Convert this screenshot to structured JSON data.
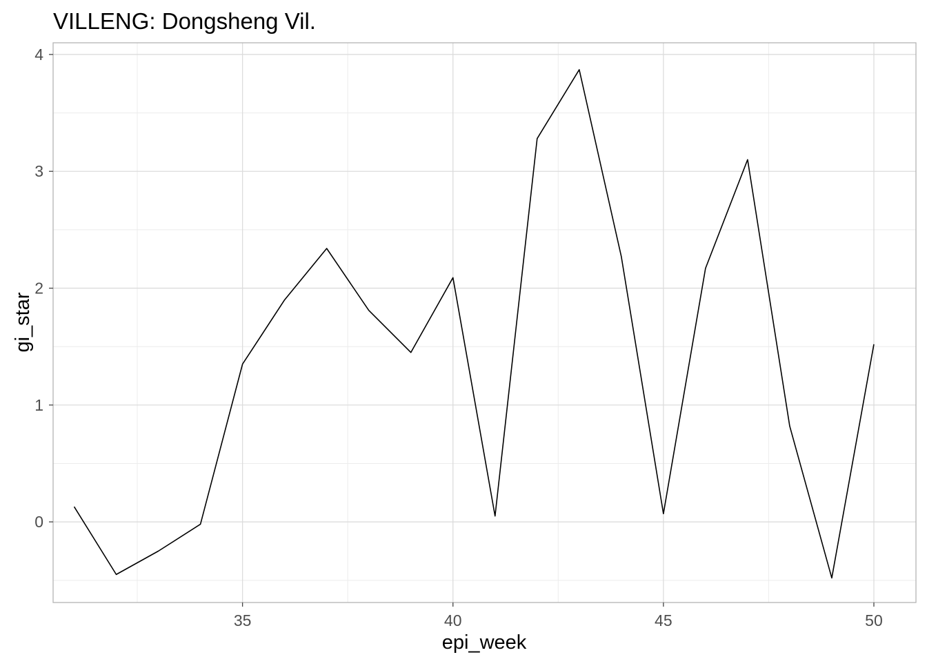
{
  "chart_data": {
    "type": "line",
    "title": "VILLENG: Dongsheng Vil.",
    "xlabel": "epi_week",
    "ylabel": "gi_star",
    "xlim": [
      30.5,
      51.0
    ],
    "ylim": [
      -0.69,
      4.1
    ],
    "x_ticks": [
      35,
      40,
      45,
      50
    ],
    "y_ticks": [
      0,
      1,
      2,
      3,
      4
    ],
    "x_minor_ticks": [
      32.5,
      37.5,
      42.5,
      47.5
    ],
    "y_minor_ticks": [
      -0.5,
      0.5,
      1.5,
      2.5,
      3.5
    ],
    "grid": true,
    "line_color": "#000000",
    "series": [
      {
        "x": [
          31,
          32,
          33,
          34,
          35,
          36,
          37,
          38,
          39,
          40,
          41,
          42,
          43,
          44,
          45,
          46,
          47,
          48,
          49,
          50
        ],
        "values": [
          0.13,
          -0.45,
          -0.25,
          -0.02,
          1.35,
          1.9,
          2.34,
          1.81,
          1.45,
          2.09,
          0.05,
          3.28,
          3.87,
          2.27,
          0.07,
          2.17,
          3.1,
          0.82,
          -0.48,
          1.52
        ]
      }
    ]
  }
}
